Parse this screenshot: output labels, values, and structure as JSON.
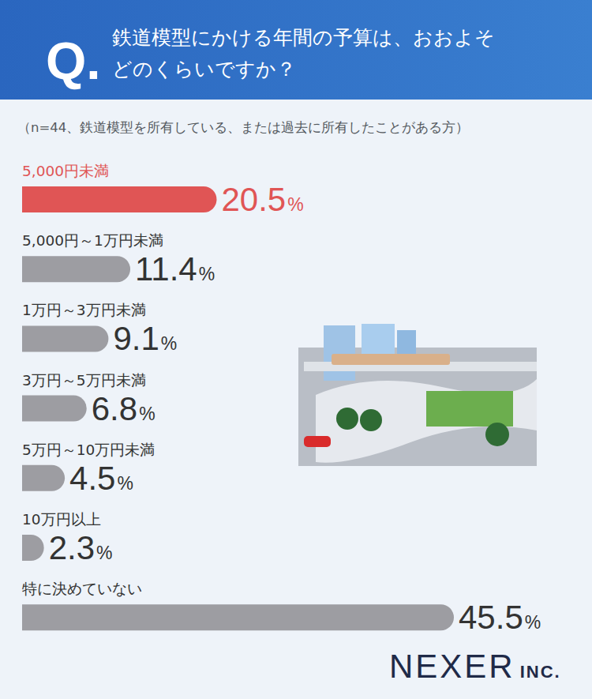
{
  "chart_data": {
    "type": "bar",
    "orientation": "horizontal",
    "title": "鉄道模型にかける年間の予算は、おおよそどのくらいですか？",
    "subtitle": "（n=44、鉄道模型を所有している、または過去に所有したことがある方）",
    "annotations": [
      "Q.",
      "NEXER INC."
    ],
    "categories": [
      "5,000円未満",
      "5,000円～1万円未満",
      "1万円～3万円未満",
      "3万円～5万円未満",
      "5万円～10万円未満",
      "10万円以上",
      "特に決めていない"
    ],
    "values": [
      20.5,
      11.4,
      9.1,
      6.8,
      4.5,
      2.3,
      45.5
    ],
    "value_labels": [
      "20.5%",
      "11.4%",
      "9.1%",
      "6.8%",
      "4.5%",
      "2.3%",
      "45.5%"
    ],
    "colors": [
      "#e05555",
      "#9d9da2",
      "#9d9da2",
      "#9d9da2",
      "#9d9da2",
      "#9d9da2",
      "#9d9da2"
    ],
    "xlim": [
      0,
      45.5
    ],
    "data_labels": true,
    "tick_labels": false,
    "grid": false
  }
}
